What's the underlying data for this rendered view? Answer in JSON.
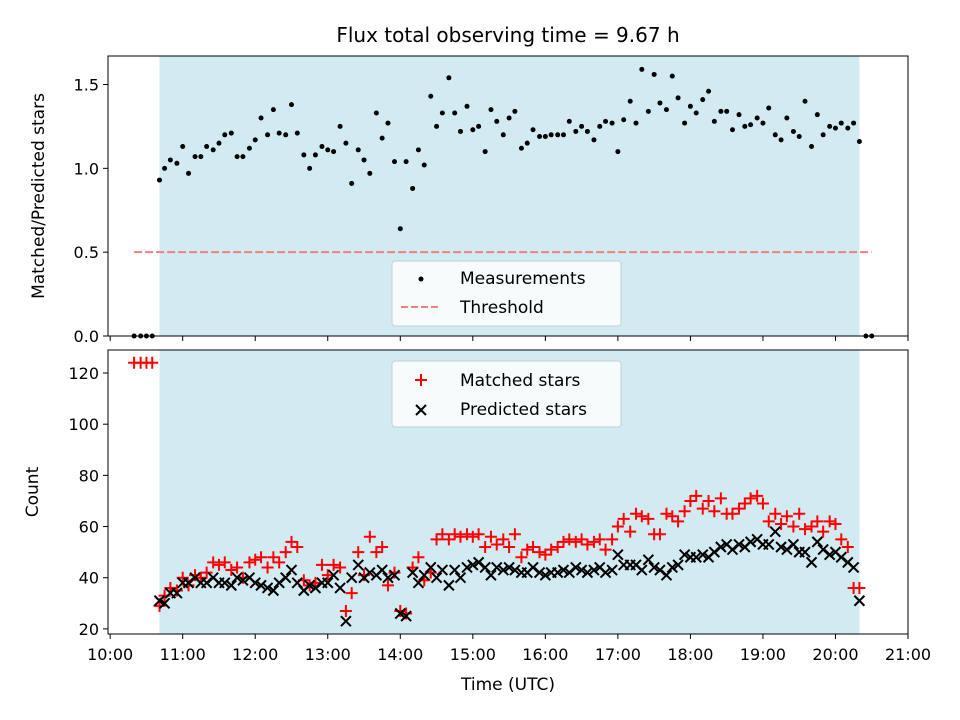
{
  "figure_title": "Flux total observing time = 9.67 h",
  "colors": {
    "observing_band": "#add8e6",
    "measurement": "#000000",
    "threshold": "#f08080",
    "matched": "#ff0000",
    "predicted": "#000000"
  },
  "chart_data": [
    {
      "type": "scatter",
      "panel": "top",
      "title": "Flux total observing time = 9.67 h",
      "ylabel": "Matched/Predicted stars",
      "xlim": [
        9.97,
        21.0
      ],
      "ylim": [
        0,
        1.67
      ],
      "yticks": [
        "0.0",
        "0.5",
        "1.0",
        "1.5"
      ],
      "observing_window": [
        10.68,
        20.33
      ],
      "threshold": {
        "name": "Threshold",
        "y": 0.5,
        "x_range": [
          10.33,
          20.5
        ]
      },
      "legend": {
        "placement": "lower-center",
        "entries": [
          "Measurements",
          "Threshold"
        ]
      },
      "series": [
        {
          "name": "Measurements",
          "x": [
            10.33,
            10.42,
            10.5,
            10.58,
            10.68,
            10.75,
            10.83,
            10.92,
            11.0,
            11.08,
            11.17,
            11.25,
            11.33,
            11.42,
            11.5,
            11.58,
            11.67,
            11.75,
            11.83,
            11.92,
            12.0,
            12.08,
            12.17,
            12.25,
            12.33,
            12.42,
            12.5,
            12.58,
            12.67,
            12.75,
            12.83,
            12.92,
            13.0,
            13.08,
            13.17,
            13.25,
            13.33,
            13.42,
            13.5,
            13.58,
            13.67,
            13.75,
            13.83,
            13.92,
            14.0,
            14.08,
            14.17,
            14.25,
            14.33,
            14.42,
            14.5,
            14.58,
            14.67,
            14.75,
            14.83,
            14.92,
            15.0,
            15.08,
            15.17,
            15.25,
            15.33,
            15.42,
            15.5,
            15.58,
            15.67,
            15.75,
            15.83,
            15.92,
            16.0,
            16.08,
            16.17,
            16.25,
            16.33,
            16.42,
            16.5,
            16.58,
            16.67,
            16.75,
            16.83,
            16.92,
            17.0,
            17.08,
            17.17,
            17.25,
            17.33,
            17.42,
            17.5,
            17.58,
            17.67,
            17.75,
            17.83,
            17.92,
            18.0,
            18.08,
            18.17,
            18.25,
            18.33,
            18.42,
            18.5,
            18.58,
            18.67,
            18.75,
            18.83,
            18.92,
            19.0,
            19.08,
            19.17,
            19.25,
            19.33,
            19.42,
            19.5,
            19.58,
            19.67,
            19.75,
            19.83,
            19.92,
            20.0,
            20.08,
            20.17,
            20.25,
            20.33,
            20.42,
            20.5
          ],
          "y": [
            0,
            0,
            0,
            0,
            0.93,
            1.0,
            1.05,
            1.03,
            1.13,
            0.97,
            1.07,
            1.07,
            1.13,
            1.11,
            1.15,
            1.2,
            1.21,
            1.07,
            1.07,
            1.12,
            1.17,
            1.3,
            1.2,
            1.35,
            1.21,
            1.2,
            1.38,
            1.21,
            1.08,
            1.0,
            1.08,
            1.13,
            1.11,
            1.1,
            1.25,
            1.15,
            0.91,
            1.11,
            1.05,
            0.97,
            1.33,
            1.18,
            1.27,
            1.04,
            0.64,
            1.04,
            0.88,
            1.11,
            1.02,
            1.43,
            1.25,
            1.33,
            1.54,
            1.33,
            1.22,
            1.37,
            1.23,
            1.25,
            1.1,
            1.35,
            1.28,
            1.2,
            1.3,
            1.34,
            1.12,
            1.15,
            1.23,
            1.19,
            1.19,
            1.2,
            1.2,
            1.2,
            1.28,
            1.22,
            1.25,
            1.22,
            1.17,
            1.25,
            1.28,
            1.27,
            1.1,
            1.29,
            1.4,
            1.27,
            1.59,
            1.34,
            1.56,
            1.39,
            1.35,
            1.55,
            1.42,
            1.27,
            1.37,
            1.33,
            1.41,
            1.46,
            1.28,
            1.34,
            1.34,
            1.23,
            1.32,
            1.25,
            1.26,
            1.3,
            1.27,
            1.36,
            1.2,
            1.17,
            1.3,
            1.22,
            1.19,
            1.4,
            1.13,
            1.32,
            1.2,
            1.25,
            1.24,
            1.27,
            1.24,
            1.27,
            1.16,
            0,
            0
          ]
        }
      ]
    },
    {
      "type": "scatter",
      "panel": "bottom",
      "xlabel": "Time (UTC)",
      "ylabel": "Count",
      "xlim": [
        9.97,
        21.0
      ],
      "ylim": [
        18,
        129
      ],
      "xticks": [
        "10:00",
        "11:00",
        "12:00",
        "13:00",
        "14:00",
        "15:00",
        "16:00",
        "17:00",
        "18:00",
        "19:00",
        "20:00",
        "21:00"
      ],
      "yticks": [
        "20",
        "40",
        "60",
        "80",
        "100",
        "120"
      ],
      "observing_window": [
        10.68,
        20.33
      ],
      "legend": {
        "placement": "upper-center",
        "entries": [
          "Matched stars",
          "Predicted stars"
        ]
      },
      "x": [
        10.33,
        10.42,
        10.5,
        10.58,
        10.68,
        10.75,
        10.83,
        10.92,
        11.0,
        11.08,
        11.17,
        11.25,
        11.33,
        11.42,
        11.5,
        11.58,
        11.67,
        11.75,
        11.83,
        11.92,
        12.0,
        12.08,
        12.17,
        12.25,
        12.33,
        12.42,
        12.5,
        12.58,
        12.67,
        12.75,
        12.83,
        12.92,
        13.0,
        13.08,
        13.17,
        13.25,
        13.33,
        13.42,
        13.5,
        13.58,
        13.67,
        13.75,
        13.83,
        13.92,
        14.0,
        14.08,
        14.17,
        14.25,
        14.33,
        14.42,
        14.5,
        14.58,
        14.67,
        14.75,
        14.83,
        14.92,
        15.0,
        15.08,
        15.17,
        15.25,
        15.33,
        15.42,
        15.5,
        15.58,
        15.67,
        15.75,
        15.83,
        15.92,
        16.0,
        16.08,
        16.17,
        16.25,
        16.33,
        16.42,
        16.5,
        16.58,
        16.67,
        16.75,
        16.83,
        16.92,
        17.0,
        17.08,
        17.17,
        17.25,
        17.33,
        17.42,
        17.5,
        17.58,
        17.67,
        17.75,
        17.83,
        17.92,
        18.0,
        18.08,
        18.17,
        18.25,
        18.33,
        18.42,
        18.5,
        18.58,
        18.67,
        18.75,
        18.83,
        18.92,
        19.0,
        19.08,
        19.17,
        19.25,
        19.33,
        19.42,
        19.5,
        19.58,
        19.67,
        19.75,
        19.83,
        19.92,
        20.0,
        20.08,
        20.17,
        20.25,
        20.33,
        20.42,
        20.5
      ],
      "series": [
        {
          "name": "Matched stars",
          "marker": "plus",
          "values": [
            124,
            124,
            124,
            124,
            29,
            33,
            36,
            35,
            40,
            37,
            41,
            40,
            42,
            46,
            45,
            46,
            43,
            44,
            40,
            46,
            47,
            48,
            44,
            48,
            46,
            50,
            54,
            52,
            39,
            37,
            38,
            45,
            41,
            45,
            44,
            27,
            34,
            50,
            41,
            56,
            50,
            52,
            37,
            42,
            27,
            26,
            44,
            48,
            39,
            42,
            55,
            57,
            55,
            57,
            56,
            57,
            56,
            57,
            52,
            56,
            53,
            55,
            52,
            57,
            48,
            51,
            52,
            50,
            49,
            51,
            52,
            54,
            55,
            54,
            55,
            53,
            54,
            55,
            51,
            55,
            60,
            63,
            58,
            65,
            64,
            63,
            57,
            57,
            65,
            64,
            62,
            66,
            70,
            72,
            67,
            70,
            66,
            71,
            65,
            65,
            67,
            69,
            71,
            72,
            69,
            62,
            65,
            61,
            64,
            60,
            65,
            59,
            60,
            62,
            58,
            62,
            61,
            55,
            52,
            36,
            36
          ],
          "values_printed": false
        },
        {
          "name": "Predicted stars",
          "marker": "x",
          "values": [
            null,
            null,
            null,
            null,
            31,
            30,
            34,
            34,
            38,
            38,
            40,
            38,
            38,
            40,
            38,
            38,
            37,
            40,
            39,
            40,
            38,
            37,
            36,
            35,
            38,
            40,
            43,
            38,
            35,
            37,
            36,
            38,
            38,
            41,
            36,
            23,
            40,
            45,
            40,
            42,
            41,
            43,
            40,
            41,
            26,
            25,
            42,
            38,
            41,
            44,
            40,
            43,
            37,
            43,
            40,
            44,
            45,
            46,
            44,
            41,
            44,
            43,
            44,
            43,
            42,
            42,
            44,
            42,
            41,
            42,
            42,
            43,
            42,
            44,
            43,
            42,
            43,
            44,
            42,
            43,
            49,
            45,
            45,
            45,
            43,
            47,
            44,
            43,
            41,
            44,
            45,
            49,
            48,
            48,
            49,
            48,
            50,
            52,
            53,
            51,
            53,
            52,
            54,
            55,
            53,
            53,
            58,
            52,
            51,
            53,
            50,
            50,
            46,
            54,
            51,
            49,
            50,
            48,
            46,
            44,
            31
          ],
          "values_printed": false
        }
      ]
    }
  ]
}
